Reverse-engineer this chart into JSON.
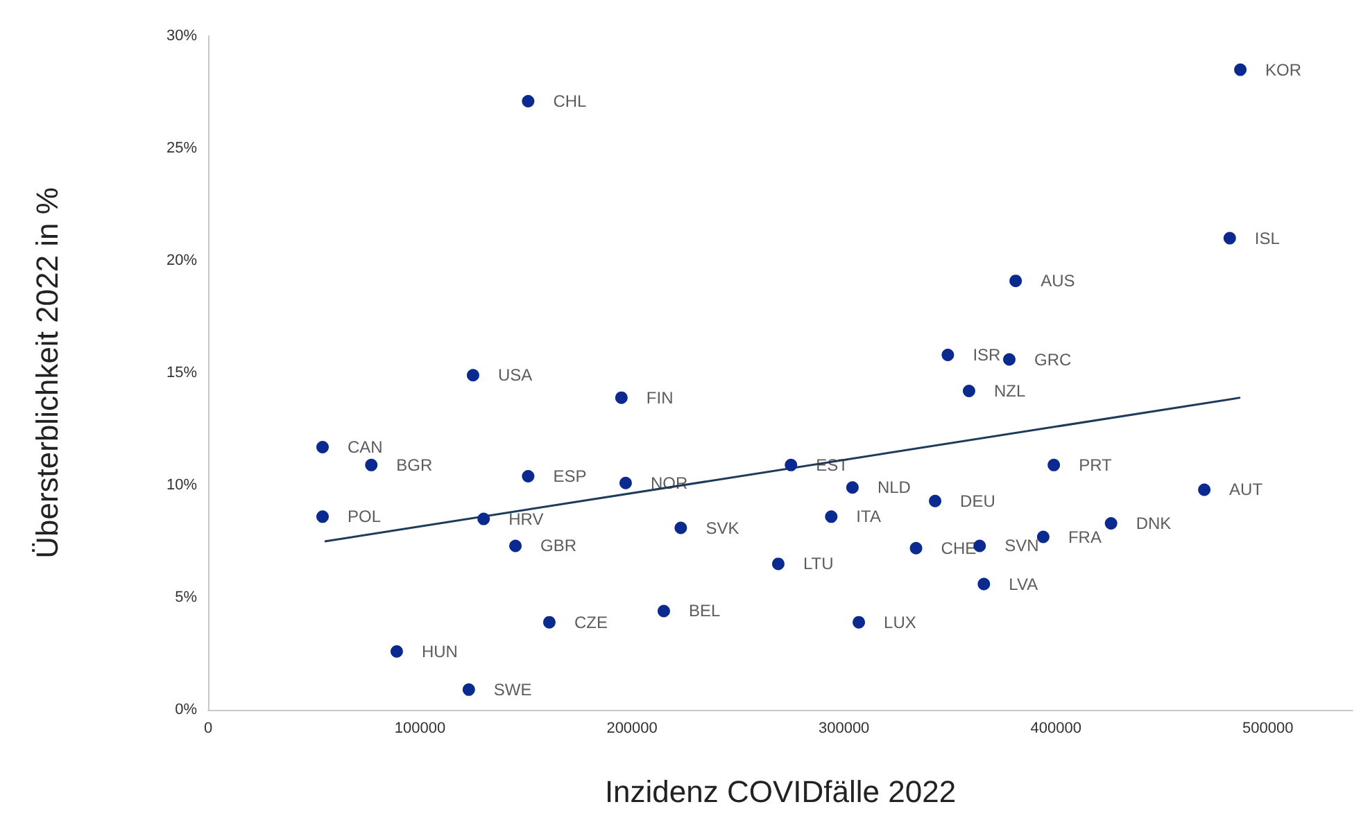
{
  "chart_data": {
    "type": "scatter",
    "xlabel": "Inzidenz COVIDfälle 2022",
    "ylabel": "Übersterblichkeit 2022 in %",
    "xlim": [
      0,
      540000
    ],
    "xticks": [
      0,
      100000,
      200000,
      300000,
      400000,
      500000
    ],
    "ylim": [
      0,
      30
    ],
    "yticks": [
      {
        "value": 0,
        "label": "0%"
      },
      {
        "value": 5,
        "label": "5%"
      },
      {
        "value": 10,
        "label": "10%"
      },
      {
        "value": 15,
        "label": "15%"
      },
      {
        "value": 20,
        "label": "20%"
      },
      {
        "value": 25,
        "label": "25%"
      },
      {
        "value": 30,
        "label": "30%"
      }
    ],
    "grid": false,
    "marker": "circle",
    "series": [
      {
        "color": "#0b2a8f",
        "x": [
          487000,
          151000,
          482000,
          381000,
          349000,
          378000,
          125000,
          359000,
          195000,
          54000,
          77000,
          275000,
          399000,
          151000,
          197000,
          304000,
          470000,
          343000,
          54000,
          294000,
          130000,
          223000,
          426000,
          394000,
          145000,
          364000,
          334000,
          269000,
          366000,
          215000,
          161000,
          307000,
          89000,
          123000
        ],
        "values": [
          28.5,
          27.1,
          21.0,
          19.1,
          15.8,
          15.6,
          14.9,
          14.2,
          13.9,
          11.7,
          10.9,
          10.9,
          10.9,
          10.4,
          10.1,
          9.9,
          9.8,
          9.3,
          8.6,
          8.6,
          8.5,
          8.1,
          8.3,
          7.7,
          7.3,
          7.3,
          7.2,
          6.5,
          5.6,
          4.4,
          3.9,
          3.9,
          2.6,
          0.9
        ]
      },
      {
        "type": "line",
        "color": "#1f3b5c",
        "line_style": "solid",
        "marker": "none",
        "x": [
          55000,
          487000
        ],
        "values": [
          7.5,
          13.9
        ]
      }
    ],
    "annotations": [
      {
        "text": "KOR",
        "x": 487000,
        "y": 28.5
      },
      {
        "text": "CHL",
        "x": 151000,
        "y": 27.1
      },
      {
        "text": "ISL",
        "x": 482000,
        "y": 21.0
      },
      {
        "text": "AUS",
        "x": 381000,
        "y": 19.1
      },
      {
        "text": "ISR",
        "x": 349000,
        "y": 15.8
      },
      {
        "text": "GRC",
        "x": 378000,
        "y": 15.6
      },
      {
        "text": "USA",
        "x": 125000,
        "y": 14.9
      },
      {
        "text": "NZL",
        "x": 359000,
        "y": 14.2
      },
      {
        "text": "FIN",
        "x": 195000,
        "y": 13.9
      },
      {
        "text": "CAN",
        "x": 54000,
        "y": 11.7
      },
      {
        "text": "BGR",
        "x": 77000,
        "y": 10.9
      },
      {
        "text": "EST",
        "x": 275000,
        "y": 10.9
      },
      {
        "text": "PRT",
        "x": 399000,
        "y": 10.9
      },
      {
        "text": "ESP",
        "x": 151000,
        "y": 10.4
      },
      {
        "text": "NOR",
        "x": 197000,
        "y": 10.1
      },
      {
        "text": "NLD",
        "x": 304000,
        "y": 9.9
      },
      {
        "text": "AUT",
        "x": 470000,
        "y": 9.8
      },
      {
        "text": "DEU",
        "x": 343000,
        "y": 9.3
      },
      {
        "text": "POL",
        "x": 54000,
        "y": 8.6
      },
      {
        "text": "ITA",
        "x": 294000,
        "y": 8.6
      },
      {
        "text": "HRV",
        "x": 130000,
        "y": 8.5
      },
      {
        "text": "SVK",
        "x": 223000,
        "y": 8.1
      },
      {
        "text": "DNK",
        "x": 426000,
        "y": 8.3
      },
      {
        "text": "FRA",
        "x": 394000,
        "y": 7.7
      },
      {
        "text": "GBR",
        "x": 145000,
        "y": 7.3
      },
      {
        "text": "SVN",
        "x": 364000,
        "y": 7.3
      },
      {
        "text": "CHE",
        "x": 334000,
        "y": 7.2
      },
      {
        "text": "LTU",
        "x": 269000,
        "y": 6.5
      },
      {
        "text": "LVA",
        "x": 366000,
        "y": 5.6
      },
      {
        "text": "BEL",
        "x": 215000,
        "y": 4.4
      },
      {
        "text": "CZE",
        "x": 161000,
        "y": 3.9
      },
      {
        "text": "LUX",
        "x": 307000,
        "y": 3.9
      },
      {
        "text": "HUN",
        "x": 89000,
        "y": 2.6
      },
      {
        "text": "SWE",
        "x": 123000,
        "y": 0.9
      }
    ]
  }
}
